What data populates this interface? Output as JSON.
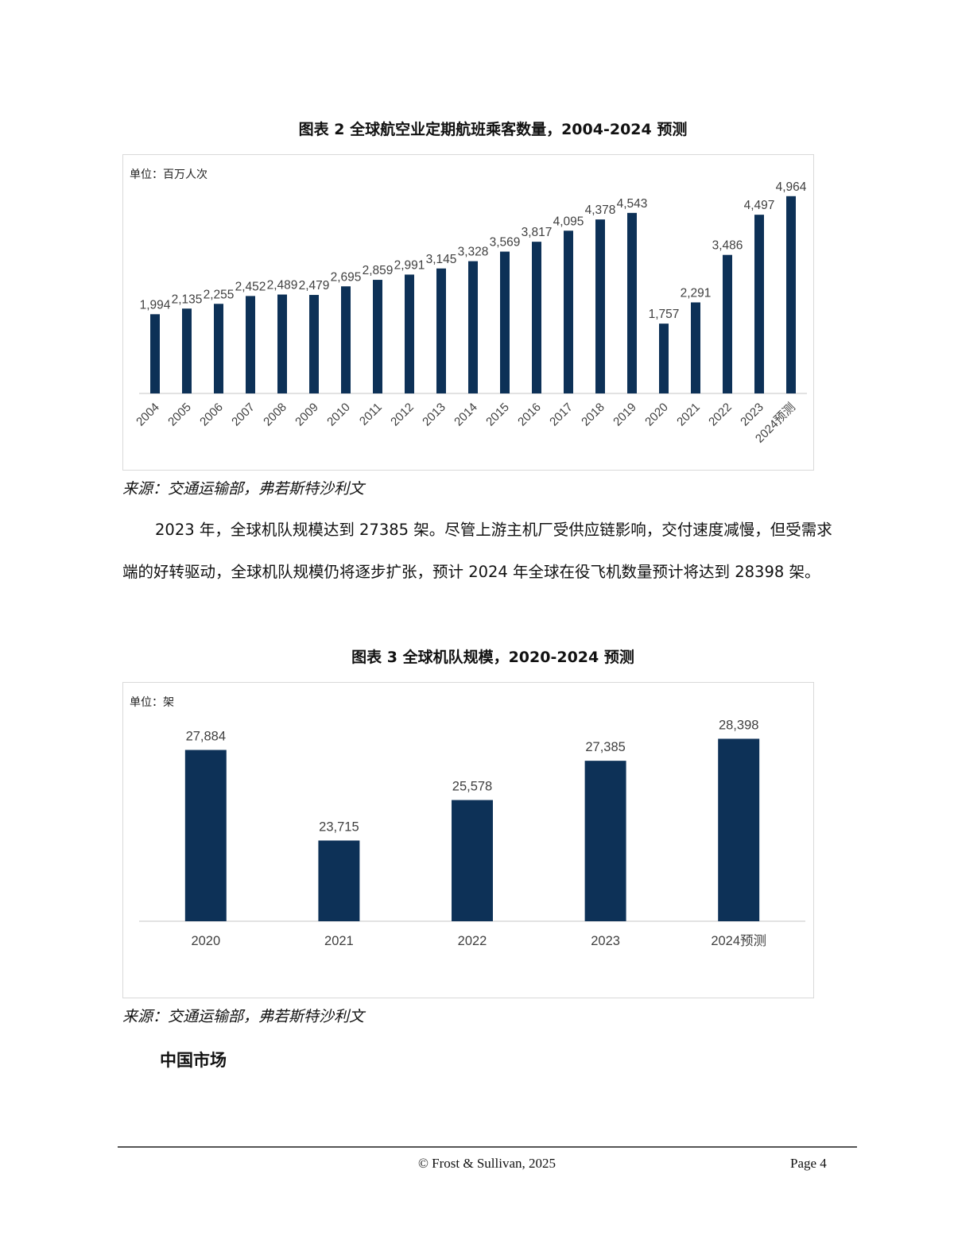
{
  "chart2": {
    "caption": "图表 2 全球航空业定期航班乘客数量，2004-2024 预测",
    "unit_label": "单位：百万人次",
    "source": "来源：交通运输部，弗若斯特沙利文"
  },
  "chart3": {
    "caption": "图表 3 全球机队规模，2020-2024 预测",
    "unit_label": "单位：架",
    "source": "来源：交通运输部，弗若斯特沙利文"
  },
  "paragraph": {
    "text": "2023 年，全球机队规模达到 27385 架。尽管上游主机厂受供应链影响，交付速度减慢，但受需求端的好转驱动，全球机队规模仍将逐步扩张，预计 2024 年全球在役飞机数量预计将达到 28398 架。"
  },
  "section_heading": "中国市场",
  "footer": {
    "copyright": "© Frost & Sullivan, 2025",
    "page": "Page 4"
  },
  "colors": {
    "bar": "#0d3157",
    "axis": "#d9d9d9",
    "label": "#404040"
  },
  "chart_data": [
    {
      "type": "bar",
      "title": "图表 2 全球航空业定期航班乘客数量，2004-2024 预测",
      "ylabel": "单位：百万人次",
      "xlabel": "",
      "categories": [
        "2004",
        "2005",
        "2006",
        "2007",
        "2008",
        "2009",
        "2010",
        "2011",
        "2012",
        "2013",
        "2014",
        "2015",
        "2016",
        "2017",
        "2018",
        "2019",
        "2020",
        "2021",
        "2022",
        "2023",
        "2024预测"
      ],
      "values": [
        1994,
        2135,
        2255,
        2452,
        2489,
        2479,
        2695,
        2859,
        2991,
        3145,
        3328,
        3569,
        3817,
        4095,
        4378,
        4543,
        1757,
        2291,
        3486,
        4497,
        4964
      ],
      "value_labels": [
        "1,994",
        "2,135",
        "2,255",
        "2,452",
        "2,489",
        "2,479",
        "2,695",
        "2,859",
        "2,991",
        "3,145",
        "3,328",
        "3,569",
        "3,817",
        "4,095",
        "4,378",
        "4,543",
        "1,757",
        "2,291",
        "3,486",
        "4,497",
        "4,964"
      ],
      "ylim": [
        0,
        5000
      ],
      "grid": false,
      "x_tick_rotation": "diagonal"
    },
    {
      "type": "bar",
      "title": "图表 3 全球机队规模，2020-2024 预测",
      "ylabel": "单位：架",
      "xlabel": "",
      "categories": [
        "2020",
        "2021",
        "2022",
        "2023",
        "2024预测"
      ],
      "values": [
        27884,
        23715,
        25578,
        27385,
        28398
      ],
      "value_labels": [
        "27,884",
        "23,715",
        "25,578",
        "27,385",
        "28,398"
      ],
      "ylim": [
        20000,
        29000
      ],
      "grid": false,
      "x_tick_rotation": "none"
    }
  ]
}
